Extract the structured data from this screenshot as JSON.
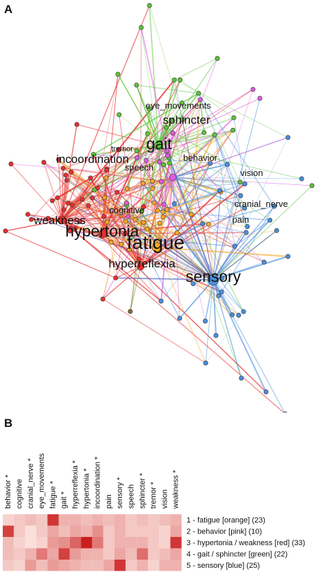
{
  "panels": {
    "a": "A",
    "b": "B"
  },
  "colors": {
    "orange": "#f5a623",
    "pink": "#e05be0",
    "red": "#e53030",
    "green": "#5cc23a",
    "blue": "#4a8fdc",
    "purple": "#8a5fc8",
    "brown": "#8a6a3a"
  },
  "network": {
    "labels": [
      {
        "text": "eye_movements",
        "size": "small"
      },
      {
        "text": "sphincter",
        "size": "medium"
      },
      {
        "text": "gait",
        "size": "large"
      },
      {
        "text": "tremor",
        "size": "tiny"
      },
      {
        "text": "behavior",
        "size": "small"
      },
      {
        "text": "incoordination",
        "size": "medium"
      },
      {
        "text": "speech",
        "size": "small"
      },
      {
        "text": "vision",
        "size": "small"
      },
      {
        "text": "cranial_nerve",
        "size": "small"
      },
      {
        "text": "cognitive",
        "size": "small"
      },
      {
        "text": "pain",
        "size": "small"
      },
      {
        "text": "weakness",
        "size": "medium"
      },
      {
        "text": "hypertonia",
        "size": "large"
      },
      {
        "text": "fatigue",
        "size": "xlarge"
      },
      {
        "text": "hyperreflexia",
        "size": "medium"
      },
      {
        "text": "sensory",
        "size": "large"
      }
    ]
  },
  "heatmap": {
    "columns": [
      "behavior *",
      "cognitive",
      "cranial_nerve *",
      "eye_movements",
      "fatigue *",
      "gait *",
      "hyperreflexia *",
      "hypertonia *",
      "incoordination *",
      "pain",
      "sensory *",
      "speech",
      "sphincter *",
      "tremor *",
      "vision",
      "weakness *"
    ],
    "rows": [
      "1 - fatigue [orange] (23)",
      "2 - behavior [pink] (10)",
      "3 - hypertonia / weakness [red] (33)",
      "4 - gait / sphincter [green] (22)",
      "5 - sensory [blue] (25)"
    ],
    "values": [
      [
        0.15,
        0.2,
        0.25,
        0.2,
        0.85,
        0.3,
        0.3,
        0.25,
        0.3,
        0.25,
        0.3,
        0.2,
        0.25,
        0.2,
        0.25,
        0.3
      ],
      [
        0.8,
        0.2,
        0.1,
        0.2,
        0.35,
        0.25,
        0.35,
        0.3,
        0.45,
        0.2,
        0.3,
        0.2,
        0.2,
        0.2,
        0.15,
        0.35
      ],
      [
        0.25,
        0.15,
        0.1,
        0.15,
        0.4,
        0.45,
        0.65,
        0.95,
        0.55,
        0.2,
        0.3,
        0.3,
        0.3,
        0.2,
        0.15,
        0.85
      ],
      [
        0.25,
        0.2,
        0.3,
        0.55,
        0.35,
        0.8,
        0.4,
        0.3,
        0.3,
        0.2,
        0.35,
        0.25,
        0.6,
        0.2,
        0.25,
        0.35
      ],
      [
        0.2,
        0.15,
        0.4,
        0.25,
        0.4,
        0.35,
        0.3,
        0.25,
        0.25,
        0.35,
        0.85,
        0.2,
        0.3,
        0.15,
        0.3,
        0.3
      ]
    ]
  }
}
